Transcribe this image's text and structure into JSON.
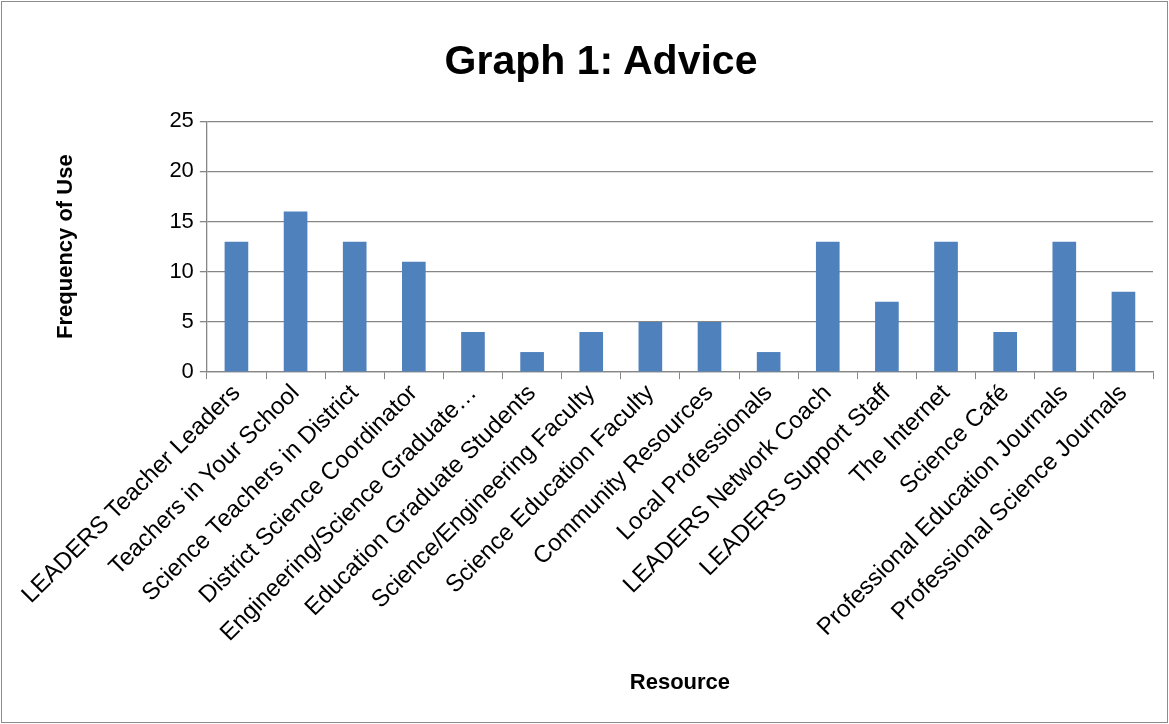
{
  "chart_data": {
    "type": "bar",
    "title": "Graph 1: Advice",
    "xlabel": "Resource",
    "ylabel": "Frequency of Use",
    "categories": [
      "LEADERS Teacher Leaders",
      "Teachers in Your School",
      "Science Teachers in District",
      "District Science Coordinator",
      "Engineering/Science Graduate…",
      "Education Graduate Students",
      "Science/Engineering Faculty",
      "Science Education Faculty",
      "Community Resources",
      "Local Professionals",
      "LEADERS Network Coach",
      "LEADERS Support Staff",
      "The Internet",
      "Science Café",
      "Professional Education Journals",
      "Professional Science Journals"
    ],
    "values": [
      13,
      16,
      13,
      11,
      4,
      2,
      4,
      5,
      5,
      2,
      13,
      7,
      13,
      4,
      13,
      8
    ],
    "color": "#4f81bd",
    "ylim": [
      0,
      25
    ],
    "yticks": [
      0,
      5,
      10,
      15,
      20,
      25
    ],
    "grid": "y"
  }
}
